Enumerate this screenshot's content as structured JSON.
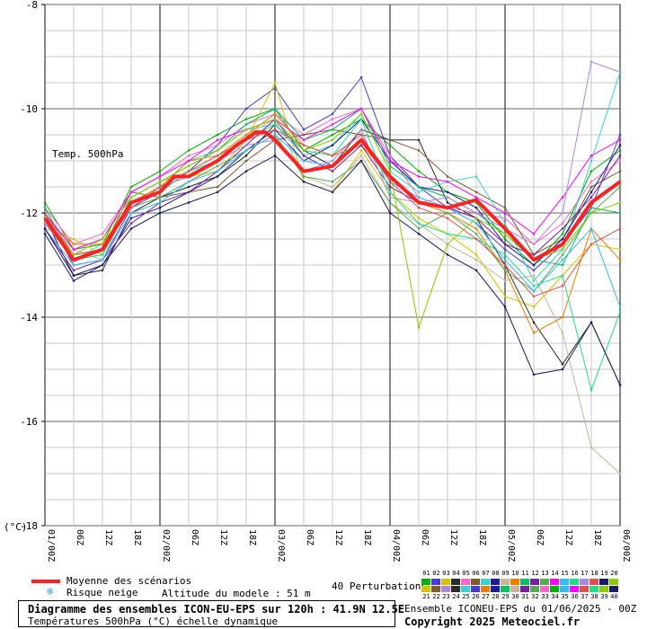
{
  "chart_data": {
    "type": "line",
    "title": "Temp. 500hPa",
    "ylabel": "(°C)",
    "ylim": [
      -18,
      -8
    ],
    "yticks": [
      -8,
      -10,
      -12,
      -14,
      -16,
      -18
    ],
    "x_labels": [
      "01/00Z",
      "06Z",
      "12Z",
      "18Z",
      "02/00Z",
      "06Z",
      "12Z",
      "18Z",
      "03/00Z",
      "06Z",
      "12Z",
      "18Z",
      "04/00Z",
      "06Z",
      "12Z",
      "18Z",
      "05/00Z",
      "06Z",
      "12Z",
      "18Z",
      "06/00Z"
    ],
    "x_hours": [
      0,
      6,
      12,
      18,
      24,
      30,
      36,
      42,
      48,
      54,
      60,
      66,
      72,
      78,
      84,
      90,
      96,
      102,
      108,
      114,
      120
    ],
    "grid": true,
    "mean": {
      "name": "Moyenne des scénarios",
      "color": "#ff2222",
      "values": [
        [
          0,
          -12.1
        ],
        [
          6,
          -12.9
        ],
        [
          12,
          -12.7
        ],
        [
          18,
          -11.8
        ],
        [
          24,
          -11.6
        ],
        [
          27,
          -11.3
        ],
        [
          30,
          -11.3
        ],
        [
          36,
          -11.0
        ],
        [
          40,
          -10.7
        ],
        [
          44,
          -10.45
        ],
        [
          46,
          -10.45
        ],
        [
          48,
          -10.6
        ],
        [
          54,
          -11.2
        ],
        [
          60,
          -11.1
        ],
        [
          66,
          -10.6
        ],
        [
          72,
          -11.3
        ],
        [
          78,
          -11.8
        ],
        [
          84,
          -11.9
        ],
        [
          90,
          -11.75
        ],
        [
          96,
          -12.3
        ],
        [
          102,
          -12.9
        ],
        [
          108,
          -12.6
        ],
        [
          114,
          -11.8
        ],
        [
          120,
          -11.4
        ]
      ]
    },
    "members": [
      {
        "name": "01",
        "color": "#00b000",
        "values": [
          -11.8,
          -12.7,
          -12.6,
          -11.5,
          -11.2,
          -10.8,
          -10.5,
          -10.2,
          -10.0,
          -10.8,
          -10.5,
          -10.2,
          -10.7,
          -11.2,
          -11.6,
          -11.8,
          -12.5,
          -13.0,
          -12.4,
          -11.2,
          -10.8
        ]
      },
      {
        "name": "02",
        "color": "#4b3bd6",
        "values": [
          -12.0,
          -13.0,
          -12.9,
          -11.9,
          -11.6,
          -11.2,
          -10.7,
          -10.0,
          -9.6,
          -10.4,
          -10.1,
          -9.4,
          -10.9,
          -11.5,
          -11.9,
          -12.2,
          -12.7,
          -13.1,
          -12.6,
          -11.9,
          -10.5
        ]
      },
      {
        "name": "03",
        "color": "#d4c400",
        "values": [
          -12.3,
          -12.5,
          -12.8,
          -11.8,
          -11.5,
          -11.3,
          -11.2,
          -10.6,
          -9.5,
          -11.4,
          -11.6,
          -10.8,
          -11.6,
          -12.1,
          -12.4,
          -12.8,
          -13.6,
          -13.8,
          -13.2,
          -12.6,
          -12.7
        ]
      },
      {
        "name": "04",
        "color": "#2a2a2a",
        "values": [
          -12.1,
          -13.2,
          -13.1,
          -12.0,
          -11.7,
          -11.5,
          -11.3,
          -10.9,
          -10.3,
          -10.8,
          -11.1,
          -10.4,
          -10.6,
          -10.6,
          -11.8,
          -12.1,
          -13.0,
          -14.1,
          -14.9,
          -14.1,
          -15.3
        ]
      },
      {
        "name": "05",
        "color": "#ff66cc",
        "values": [
          -11.9,
          -12.6,
          -12.4,
          -11.6,
          -11.3,
          -10.9,
          -10.7,
          -10.3,
          -10.1,
          -10.5,
          -10.2,
          -10.0,
          -10.9,
          -11.7,
          -11.9,
          -12.0,
          -12.1,
          -12.6,
          -12.2,
          -11.4,
          -11.0
        ]
      },
      {
        "name": "06",
        "color": "#7d5b2f",
        "values": [
          -12.2,
          -12.8,
          -12.7,
          -11.6,
          -11.7,
          -11.6,
          -11.5,
          -11.0,
          -10.6,
          -10.5,
          -10.4,
          -10.5,
          -10.6,
          -10.8,
          -11.3,
          -11.6,
          -11.9,
          -12.8,
          -12.5,
          -11.5,
          -11.2
        ]
      },
      {
        "name": "07",
        "color": "#3ad3d3",
        "values": [
          -12.0,
          -12.9,
          -12.6,
          -11.8,
          -11.5,
          -11.0,
          -10.8,
          -10.4,
          -10.3,
          -10.9,
          -10.7,
          -10.1,
          -11.2,
          -11.6,
          -11.4,
          -11.3,
          -12.2,
          -13.3,
          -12.7,
          -11.0,
          -9.3
        ]
      },
      {
        "name": "08",
        "color": "#1b1b99",
        "values": [
          -12.4,
          -13.3,
          -13.0,
          -12.1,
          -11.9,
          -11.6,
          -11.3,
          -10.8,
          -10.4,
          -11.0,
          -10.7,
          -10.2,
          -11.0,
          -11.5,
          -11.6,
          -11.9,
          -12.6,
          -13.0,
          -12.5,
          -11.6,
          -10.7
        ]
      },
      {
        "name": "09",
        "color": "#c8b59a",
        "values": [
          -12.2,
          -12.7,
          -12.9,
          -11.7,
          -11.4,
          -11.2,
          -10.9,
          -10.5,
          -10.2,
          -11.3,
          -11.5,
          -10.9,
          -11.8,
          -12.2,
          -12.6,
          -12.9,
          -13.3,
          -13.2,
          -14.3,
          -16.5,
          -17.0
        ]
      },
      {
        "name": "10",
        "color": "#f07c00",
        "values": [
          -12.1,
          -12.6,
          -12.6,
          -11.8,
          -11.5,
          -11.0,
          -10.9,
          -10.5,
          -10.1,
          -10.7,
          -10.9,
          -10.7,
          -11.3,
          -11.8,
          -12.0,
          -12.3,
          -13.1,
          -14.3,
          -14.0,
          -12.3,
          -12.9
        ]
      },
      {
        "name": "11",
        "color": "#00c060",
        "values": [
          -11.9,
          -12.9,
          -12.8,
          -11.7,
          -11.4,
          -11.1,
          -10.8,
          -10.3,
          -10.0,
          -10.6,
          -10.4,
          -10.0,
          -11.1,
          -11.5,
          -11.7,
          -12.0,
          -12.4,
          -12.9,
          -13.0,
          -11.9,
          -12.0
        ]
      },
      {
        "name": "12",
        "color": "#7a1fa2",
        "values": [
          -12.3,
          -13.1,
          -12.9,
          -12.2,
          -11.8,
          -11.6,
          -11.2,
          -10.7,
          -10.2,
          -10.9,
          -11.2,
          -10.7,
          -11.5,
          -11.8,
          -11.9,
          -12.1,
          -12.6,
          -12.8,
          -12.3,
          -11.7,
          -10.9
        ]
      },
      {
        "name": "13",
        "color": "#55aa55",
        "values": [
          -12.2,
          -12.8,
          -12.7,
          -11.9,
          -11.7,
          -11.4,
          -11.1,
          -10.8,
          -10.5,
          -11.3,
          -11.4,
          -11.0,
          -11.8,
          -12.3,
          -12.0,
          -12.4,
          -13.1,
          -13.5,
          -12.8,
          -12.0,
          -11.5
        ]
      },
      {
        "name": "14",
        "color": "#ff00ff",
        "values": [
          -12.0,
          -12.7,
          -12.5,
          -11.6,
          -11.3,
          -11.0,
          -10.6,
          -10.4,
          -10.2,
          -10.6,
          -10.3,
          -10.0,
          -11.0,
          -11.3,
          -11.4,
          -11.7,
          -12.0,
          -12.4,
          -11.7,
          -10.9,
          -10.6
        ]
      },
      {
        "name": "15",
        "color": "#33bbff",
        "values": [
          -12.3,
          -13.0,
          -12.9,
          -12.0,
          -11.8,
          -11.4,
          -11.2,
          -10.8,
          -10.5,
          -11.0,
          -11.1,
          -10.6,
          -11.4,
          -11.7,
          -11.9,
          -12.2,
          -12.9,
          -13.5,
          -12.9,
          -12.3,
          -13.8
        ]
      },
      {
        "name": "16",
        "color": "#22dd88",
        "values": [
          -12.1,
          -12.9,
          -12.8,
          -11.8,
          -11.6,
          -11.2,
          -11.0,
          -10.6,
          -10.3,
          -10.8,
          -10.9,
          -10.2,
          -11.6,
          -12.2,
          -12.4,
          -12.5,
          -12.8,
          -13.4,
          -13.2,
          -15.4,
          -13.9
        ]
      },
      {
        "name": "17",
        "color": "#aa88dd",
        "values": [
          -12.2,
          -12.9,
          -12.7,
          -11.9,
          -11.5,
          -11.3,
          -11.0,
          -10.7,
          -10.6,
          -11.2,
          -11.0,
          -10.4,
          -11.7,
          -11.8,
          -11.7,
          -12.0,
          -12.3,
          -12.6,
          -12.0,
          -9.1,
          -9.3
        ]
      },
      {
        "name": "18",
        "color": "#e05050",
        "values": [
          -12.0,
          -12.8,
          -12.7,
          -11.9,
          -11.5,
          -11.2,
          -10.9,
          -10.6,
          -10.4,
          -10.7,
          -10.9,
          -10.5,
          -11.4,
          -11.9,
          -12.1,
          -12.5,
          -13.0,
          -13.6,
          -13.4,
          -12.6,
          -12.3
        ]
      },
      {
        "name": "19",
        "color": "#1a1a66",
        "values": [
          -12.3,
          -13.2,
          -13.0,
          -12.3,
          -12.0,
          -11.8,
          -11.6,
          -11.2,
          -10.9,
          -11.4,
          -11.6,
          -11.0,
          -12.0,
          -12.4,
          -12.8,
          -13.1,
          -13.8,
          -15.1,
          -15.0,
          -14.1,
          -15.3
        ]
      },
      {
        "name": "20",
        "color": "#88cc00",
        "values": [
          -12.1,
          -12.8,
          -12.5,
          -11.7,
          -11.4,
          -11.1,
          -10.8,
          -10.4,
          -10.2,
          -10.8,
          -10.6,
          -10.1,
          -11.2,
          -14.2,
          -12.6,
          -12.1,
          -12.4,
          -12.9,
          -12.7,
          -12.0,
          -11.8
        ]
      }
    ]
  },
  "legend": {
    "mean_label": "Moyenne des scénarios",
    "snow_icon": "snowflake-icon",
    "snow_label": "Risque neige",
    "altitude_label": "Altitude du modele : 51 m",
    "perturbations_label": "40 Perturbations",
    "swatch_numbers_top": [
      "01",
      "02",
      "03",
      "04",
      "05",
      "06",
      "07",
      "08",
      "09",
      "10",
      "11",
      "12",
      "13",
      "14",
      "15",
      "16",
      "17",
      "18",
      "19",
      "20"
    ],
    "swatch_numbers_bottom": [
      "21",
      "22",
      "23",
      "24",
      "25",
      "26",
      "27",
      "28",
      "29",
      "30",
      "31",
      "32",
      "33",
      "34",
      "35",
      "36",
      "37",
      "38",
      "39",
      "40"
    ],
    "swatch_colors_top": [
      "#00b000",
      "#4b3bd6",
      "#d4c400",
      "#2a2a2a",
      "#ff66cc",
      "#7d5b2f",
      "#3ad3d3",
      "#1b1b99",
      "#c8b59a",
      "#f07c00",
      "#00c060",
      "#7a1fa2",
      "#55aa55",
      "#ff00ff",
      "#33bbff",
      "#22dd88",
      "#aa88dd",
      "#e05050",
      "#1a1a66",
      "#88cc00"
    ],
    "swatch_colors_bottom": [
      "#d4c400",
      "#7d5b2f",
      "#aa88dd",
      "#2a2a2a",
      "#3ad3d3",
      "#4b3bd6",
      "#f07c00",
      "#1b1b99",
      "#00c060",
      "#c8b59a",
      "#7a1fa2",
      "#55aa55",
      "#ff66cc",
      "#00b000",
      "#33bbff",
      "#ff00ff",
      "#e05050",
      "#22dd88",
      "#88cc00",
      "#1a1a66"
    ]
  },
  "footer": {
    "title": "Diagramme des ensembles ICON-EU-EPS sur 120h : 41.9N 12.5E",
    "subtitle": "Températures 500hPa (°C) échelle dynamique",
    "ensemble": "Ensemble ICONEU-EPS du 01/06/2025 - 00Z",
    "copyright": "Copyright 2025 Meteociel.fr"
  }
}
